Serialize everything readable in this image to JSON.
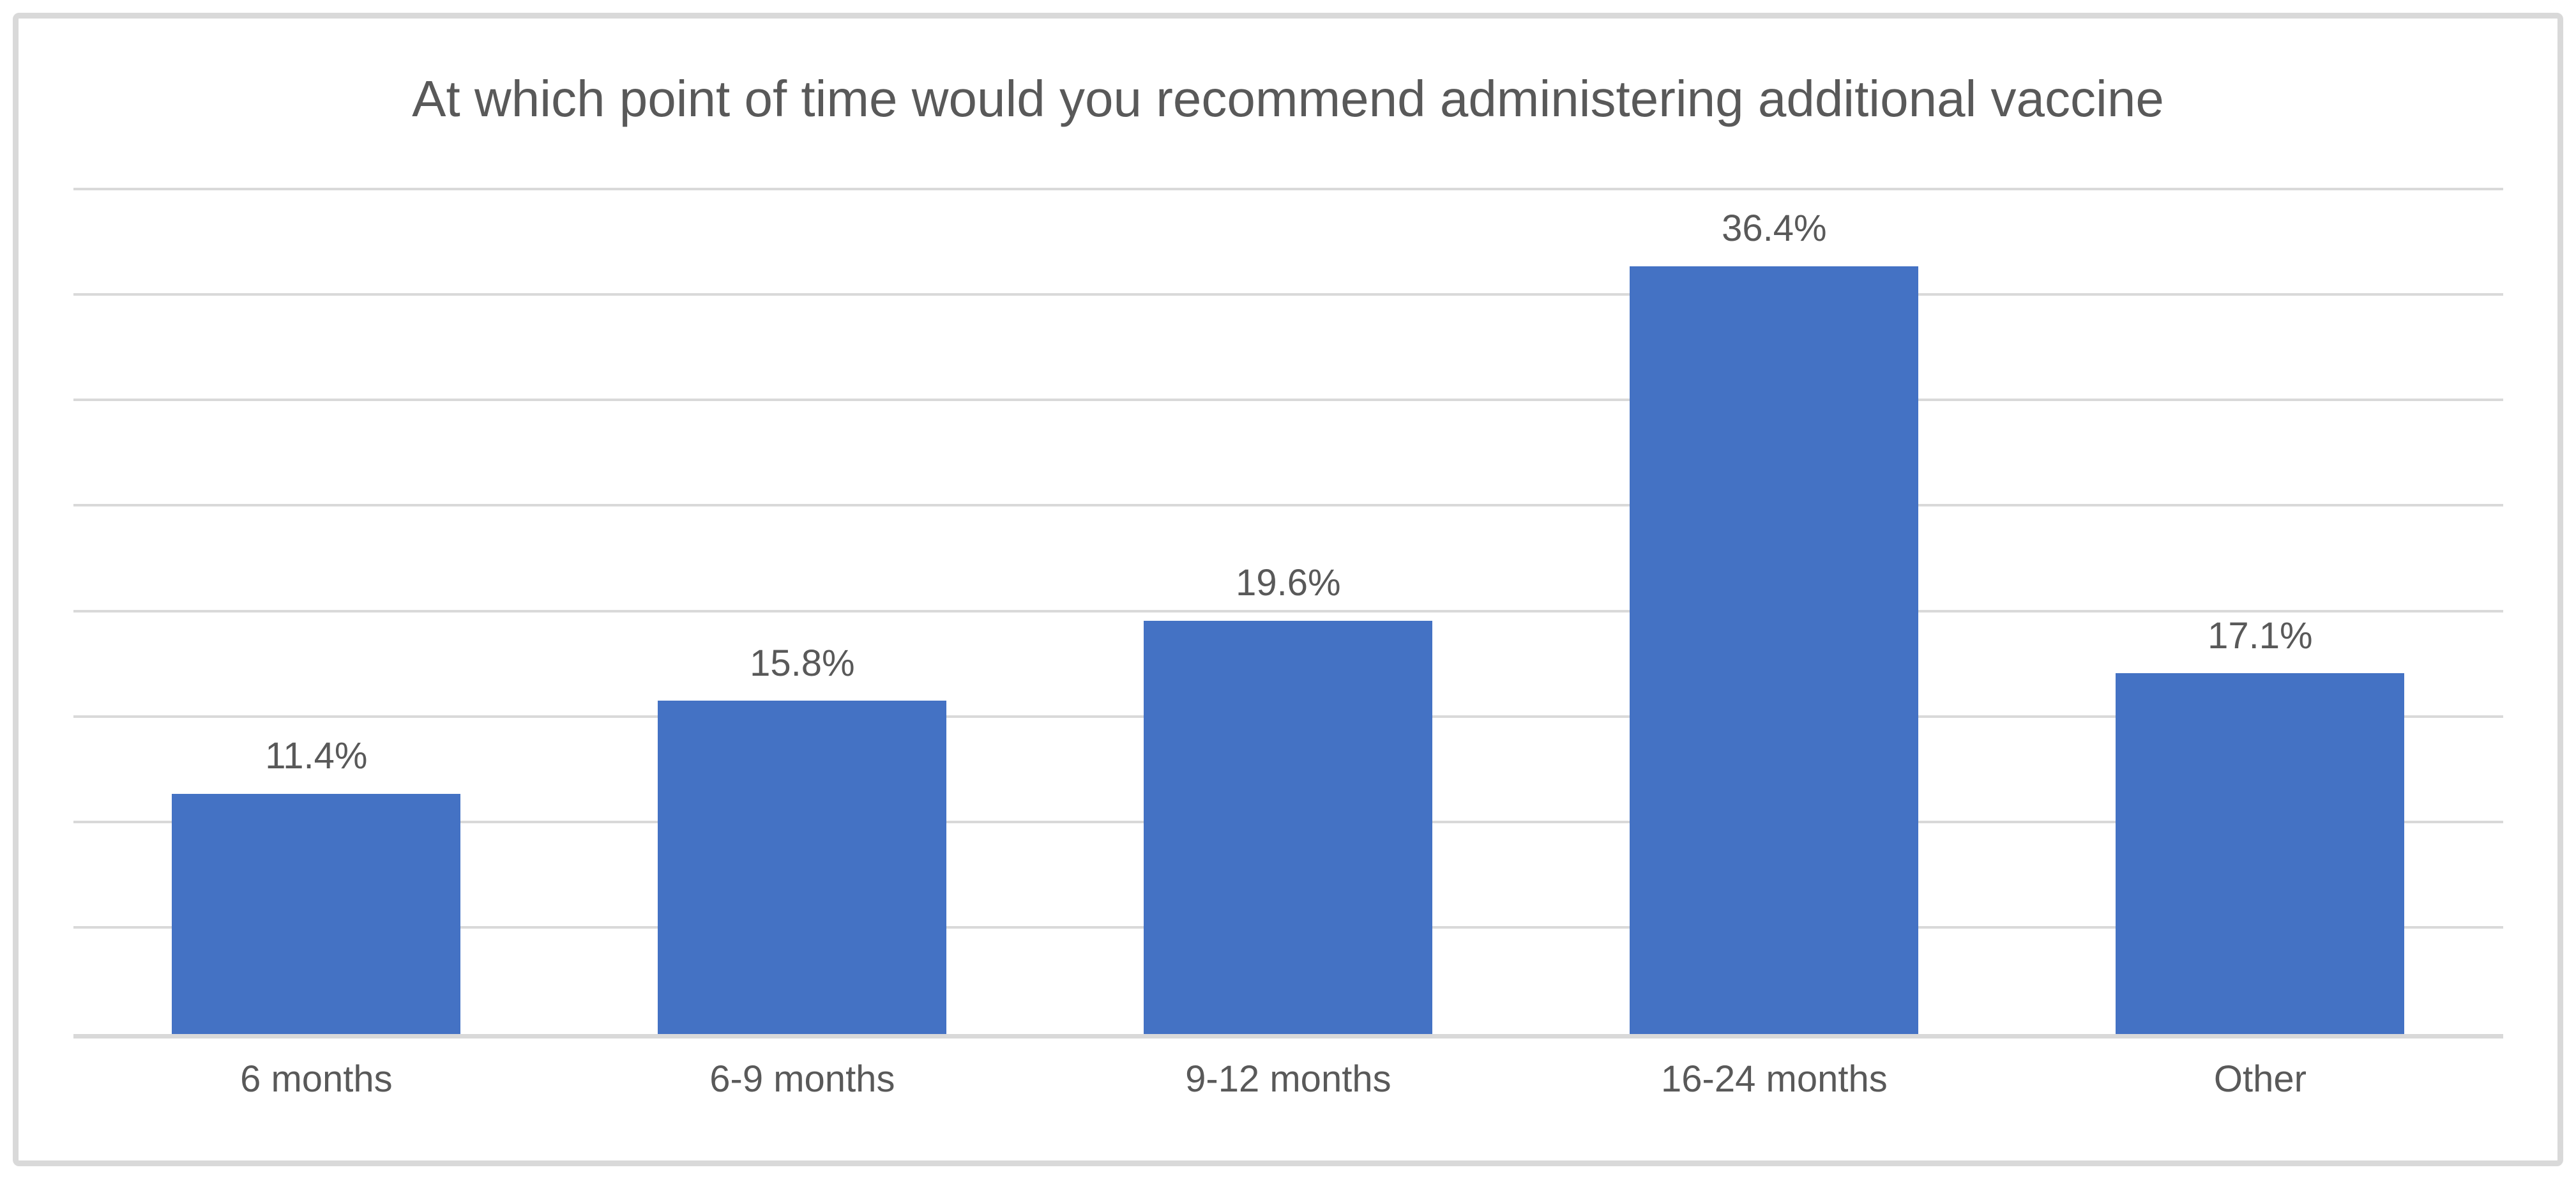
{
  "chart_data": {
    "type": "bar",
    "title": "At which point of time would you recommend administering additional vaccine",
    "categories": [
      "6 months",
      "6-9 months",
      "9-12 months",
      "16-24 months",
      "Other"
    ],
    "values": [
      11.4,
      15.8,
      19.6,
      36.4,
      17.1
    ],
    "data_labels": [
      "11.4%",
      "15.8%",
      "19.6%",
      "36.4%",
      "17.1%"
    ],
    "xlabel": "",
    "ylabel": "",
    "ylim": [
      0,
      40
    ],
    "grid_step": 5,
    "grid": true,
    "legend": false,
    "y_tick_labels_visible": false,
    "colors": {
      "bar": "#4472C4",
      "title_text": "#595959",
      "label_text": "#595959",
      "gridline": "#D9D9D9",
      "axis_line": "#D9D9D9",
      "frame_border": "#D9D9D9",
      "background": "#FFFFFF"
    }
  }
}
